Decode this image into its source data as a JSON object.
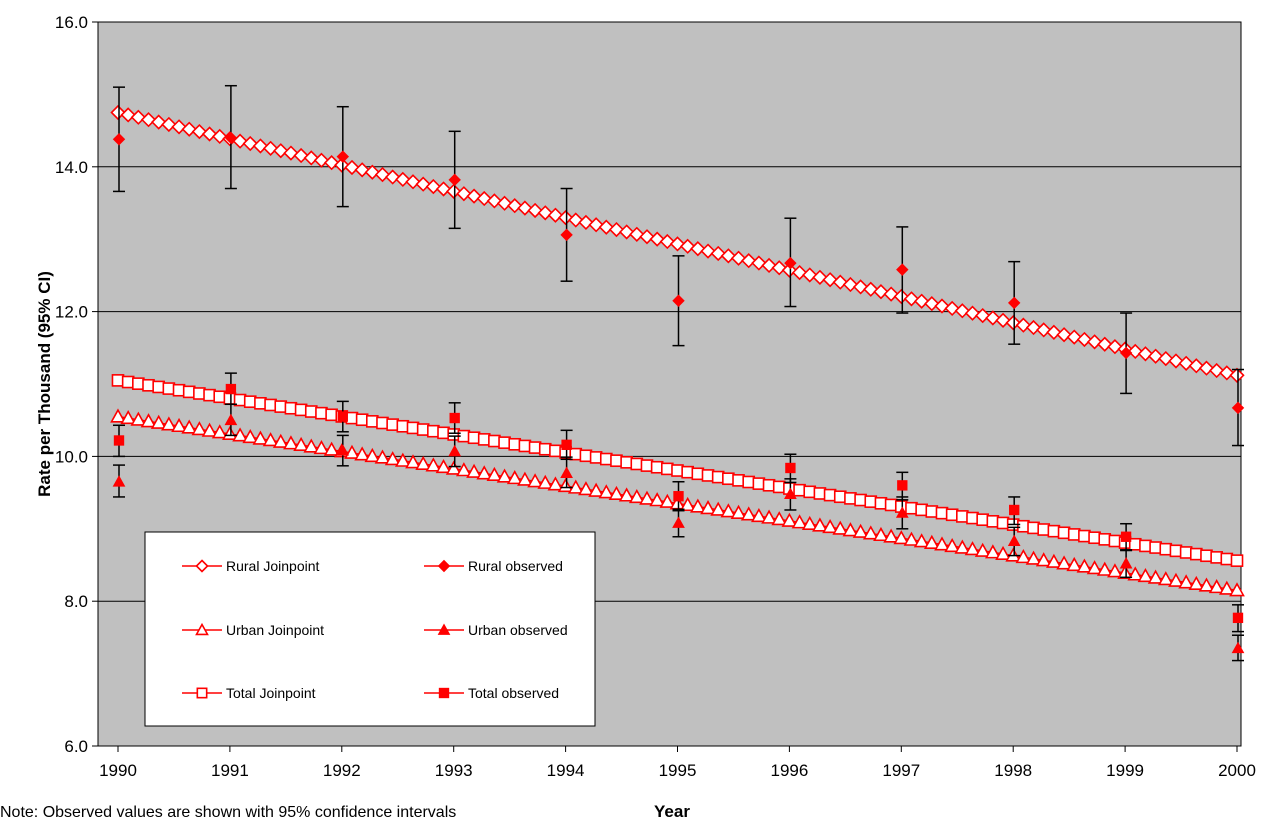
{
  "chart_data": {
    "type": "line",
    "xlabel": "Year",
    "ylabel": "Rate per Thousand (95% CI)",
    "note": "Note: Observed values are shown with 95% confidence intervals",
    "xlim": [
      1990,
      2000
    ],
    "ylim": [
      6.0,
      16.0
    ],
    "x_ticks": [
      1990,
      1991,
      1992,
      1993,
      1994,
      1995,
      1996,
      1997,
      1998,
      1999,
      2000
    ],
    "y_ticks": [
      6.0,
      8.0,
      10.0,
      12.0,
      14.0,
      16.0
    ],
    "y_tick_labels": [
      "6.0",
      "8.0",
      "10.0",
      "12.0",
      "14.0",
      "16.0"
    ],
    "grid": "horizontal",
    "plot_background": "#c0c0c0",
    "series_color": "#ff0000",
    "legend_position": "lower-left",
    "series": [
      {
        "name": "Rural Joinpoint",
        "kind": "joinpoint",
        "marker": "diamond-open",
        "start": [
          1990,
          14.75
        ],
        "end": [
          2000,
          11.12
        ]
      },
      {
        "name": "Rural observed",
        "kind": "observed",
        "marker": "diamond-filled",
        "x": [
          1990,
          1991,
          1992,
          1993,
          1994,
          1995,
          1996,
          1997,
          1998,
          1999,
          2000
        ],
        "y": [
          14.38,
          14.4,
          14.14,
          13.82,
          13.06,
          12.15,
          12.67,
          12.58,
          12.12,
          11.43,
          10.67
        ],
        "ci_low": [
          13.66,
          13.7,
          13.45,
          13.15,
          12.42,
          11.53,
          12.07,
          11.98,
          11.55,
          10.87,
          10.15
        ],
        "ci_high": [
          15.1,
          15.12,
          14.83,
          14.49,
          13.7,
          12.77,
          13.29,
          13.17,
          12.69,
          11.98,
          11.2
        ]
      },
      {
        "name": "Urban Joinpoint",
        "kind": "joinpoint",
        "marker": "triangle-open",
        "start": [
          1990,
          10.55
        ],
        "end": [
          2000,
          8.15
        ]
      },
      {
        "name": "Urban observed",
        "kind": "observed",
        "marker": "triangle-filled",
        "x": [
          1990,
          1991,
          1992,
          1993,
          1994,
          1995,
          1996,
          1997,
          1998,
          1999,
          2000
        ],
        "y": [
          9.65,
          10.5,
          10.08,
          10.07,
          9.77,
          9.08,
          9.48,
          9.22,
          8.83,
          8.52,
          7.35
        ],
        "ci_low": [
          9.44,
          10.29,
          9.87,
          9.86,
          9.57,
          8.89,
          9.26,
          9.0,
          8.63,
          8.33,
          7.18
        ],
        "ci_high": [
          9.88,
          10.72,
          10.29,
          10.28,
          9.99,
          9.27,
          9.69,
          9.44,
          9.02,
          8.71,
          7.53
        ]
      },
      {
        "name": "Total Joinpoint",
        "kind": "joinpoint",
        "marker": "square-open",
        "start": [
          1990,
          11.05
        ],
        "end": [
          2000,
          8.56
        ]
      },
      {
        "name": "Total observed",
        "kind": "observed",
        "marker": "square-filled",
        "x": [
          1990,
          1991,
          1992,
          1993,
          1994,
          1995,
          1996,
          1997,
          1998,
          1999,
          2000
        ],
        "y": [
          10.22,
          10.93,
          10.55,
          10.53,
          10.16,
          9.45,
          9.84,
          9.6,
          9.26,
          8.89,
          7.77
        ],
        "ci_low": [
          10.0,
          10.72,
          10.34,
          10.32,
          9.96,
          9.25,
          9.64,
          9.4,
          9.06,
          8.7,
          7.58
        ],
        "ci_high": [
          10.43,
          11.15,
          10.76,
          10.74,
          10.36,
          9.65,
          10.03,
          9.78,
          9.44,
          9.07,
          7.95
        ]
      }
    ]
  }
}
